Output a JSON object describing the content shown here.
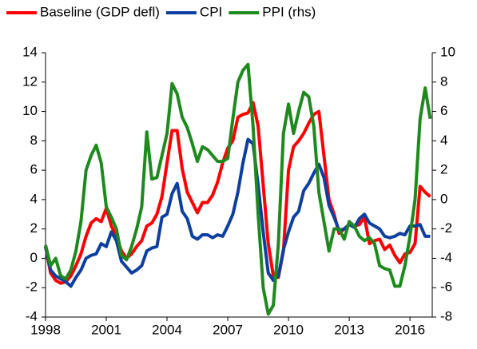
{
  "chart_data": {
    "type": "line",
    "x": [
      1998,
      1998.25,
      1998.5,
      1998.75,
      1999,
      1999.25,
      1999.5,
      1999.75,
      2000,
      2000.25,
      2000.5,
      2000.75,
      2001,
      2001.25,
      2001.5,
      2001.75,
      2002,
      2002.25,
      2002.5,
      2002.75,
      2003,
      2003.25,
      2003.5,
      2003.75,
      2004,
      2004.25,
      2004.5,
      2004.75,
      2005,
      2005.25,
      2005.5,
      2005.75,
      2006,
      2006.25,
      2006.5,
      2006.75,
      2007,
      2007.25,
      2007.5,
      2007.75,
      2008,
      2008.25,
      2008.5,
      2008.75,
      2009,
      2009.25,
      2009.5,
      2009.75,
      2010,
      2010.25,
      2010.5,
      2010.75,
      2011,
      2011.25,
      2011.5,
      2011.75,
      2012,
      2012.25,
      2012.5,
      2012.75,
      2013,
      2013.25,
      2013.5,
      2013.75,
      2014,
      2014.25,
      2014.5,
      2014.75,
      2015,
      2015.25,
      2015.5,
      2015.75,
      2016,
      2016.25,
      2016.5,
      2016.75,
      2017
    ],
    "series": [
      {
        "name": "Baseline (GDP defl)",
        "color": "#ff0000",
        "values": [
          0.8,
          -1,
          -1.5,
          -1.7,
          -1.6,
          -1.2,
          -0.5,
          0.3,
          1.5,
          2.4,
          2.7,
          2.5,
          3.4,
          2.2,
          1.5,
          0.5,
          0,
          0.3,
          0.8,
          1.2,
          2.2,
          2.4,
          3,
          4.2,
          6.5,
          8.7,
          8.7,
          6.1,
          4.5,
          3.8,
          3.1,
          3.8,
          3.8,
          4.3,
          5.2,
          6.5,
          7.5,
          8,
          9.6,
          9.8,
          9.9,
          10.6,
          9,
          5,
          1,
          -1.2,
          -1.3,
          0.5,
          6,
          7.6,
          8,
          8.5,
          9.2,
          9.8,
          10,
          7,
          4,
          3,
          1.7,
          2,
          2.3,
          2.2,
          2.3,
          2.8,
          1,
          1.2,
          1.3,
          0.6,
          0.9,
          0.2,
          -0.3,
          0.3,
          0.4,
          1,
          4.9,
          4.5,
          4.2
        ]
      },
      {
        "name": "CPI",
        "color": "#0d3fa0",
        "values": [
          0.8,
          -0.8,
          -1.2,
          -1.4,
          -1.6,
          -1.9,
          -1.3,
          -0.8,
          0,
          0.2,
          0.3,
          1,
          0.8,
          1.8,
          1.2,
          -0.2,
          -0.6,
          -1,
          -0.8,
          -0.5,
          0.5,
          0.7,
          0.8,
          2.8,
          3,
          4.4,
          5.1,
          3.2,
          2.7,
          1.5,
          1.3,
          1.6,
          1.6,
          1.4,
          1.6,
          1.5,
          2.2,
          3,
          4.5,
          6.5,
          8.1,
          7.8,
          5,
          1.8,
          -1,
          -1.5,
          -1.2,
          0.6,
          1.8,
          2.8,
          3.2,
          4.6,
          5.1,
          5.8,
          6.4,
          5.5,
          3.6,
          2.8,
          1.9,
          2,
          2.3,
          2.1,
          2.7,
          3,
          2.4,
          2.2,
          2,
          1.5,
          1.4,
          1.5,
          1.7,
          1.6,
          2.2,
          2.2,
          2.3,
          1.5,
          1.5
        ]
      },
      {
        "name": "PPI (rhs)",
        "color": "#1e8a1e",
        "axis": "y2",
        "values": [
          -3.1,
          -4.5,
          -4,
          -5.2,
          -5.4,
          -4.8,
          -3.5,
          -1.5,
          2,
          3,
          3.7,
          2.5,
          -0.5,
          -1.2,
          -2,
          -3.8,
          -4.1,
          -3.2,
          -2,
          -0.5,
          4.6,
          1.4,
          1.5,
          3,
          4.5,
          7.9,
          7.2,
          5.6,
          4.9,
          3.8,
          2.6,
          3.6,
          3.4,
          3,
          2.6,
          2.6,
          2.8,
          5.5,
          8,
          8.8,
          9.2,
          5,
          -1,
          -6,
          -7.8,
          -7.2,
          -3,
          4.5,
          6.5,
          4.5,
          6,
          7.3,
          7,
          5,
          0.5,
          -1.5,
          -3.5,
          -2,
          -2,
          -2.7,
          -1.5,
          -1.8,
          -2.5,
          -2.8,
          -2.6,
          -3,
          -4.5,
          -4.7,
          -4.8,
          -5.9,
          -5.9,
          -4.5,
          -2.5,
          0,
          5.5,
          7.6,
          5.5
        ]
      }
    ],
    "xlim": [
      1998,
      2017.1
    ],
    "xticks": [
      1998,
      2001,
      2004,
      2007,
      2010,
      2013,
      2016
    ],
    "ylim": [
      -4,
      14
    ],
    "yticks": [
      -4,
      -2,
      0,
      2,
      4,
      6,
      8,
      10,
      12,
      14
    ],
    "y2lim": [
      -8,
      10
    ],
    "y2ticks": [
      -8,
      -6,
      -4,
      -2,
      0,
      2,
      4,
      6,
      8,
      10
    ]
  }
}
